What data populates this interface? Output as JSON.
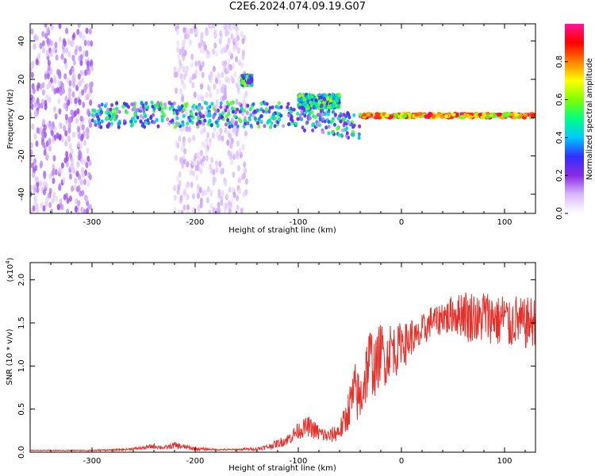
{
  "title": "C2E6.2024.074.09.19.G07",
  "chart_data": [
    {
      "type": "heatmap",
      "xlabel": "Height of straight line (km)",
      "ylabel": "Frequency (Hz)",
      "xlim": [
        -360,
        130
      ],
      "ylim": [
        -50,
        49
      ],
      "x_ticks": [
        -300,
        -200,
        -100,
        0,
        100
      ],
      "y_ticks": [
        -40,
        -20,
        0,
        20,
        40
      ],
      "colorbar": {
        "label": "Normalized spectral amplitude",
        "range": [
          0,
          1
        ],
        "ticks": [
          0.0,
          0.2,
          0.4,
          0.6,
          0.8
        ],
        "tick_labels": [
          "0.0",
          "0.2",
          "0.4",
          "0.6",
          "0.8"
        ],
        "colormap": [
          "#ffffff",
          "#d8b8ff",
          "#8a2be2",
          "#3030ff",
          "#00c8ff",
          "#00ff80",
          "#80ff00",
          "#ffff00",
          "#ff8000",
          "#ff0000",
          "#ff1493"
        ]
      },
      "regions": [
        {
          "x": [
            -360,
            -300
          ],
          "y": [
            -50,
            49
          ],
          "amplitude": 0.15,
          "kind": "scattered noise"
        },
        {
          "x": [
            -220,
            -150
          ],
          "y": [
            -50,
            49
          ],
          "amplitude": 0.1,
          "kind": "scattered noise"
        },
        {
          "x": [
            -300,
            -40
          ],
          "y": [
            -5,
            8
          ],
          "amplitude": 0.35,
          "kind": "broadband band"
        },
        {
          "x": [
            -155,
            -145
          ],
          "y": [
            17,
            22
          ],
          "amplitude": 0.5,
          "kind": "patch"
        },
        {
          "x": [
            -100,
            -60
          ],
          "y": [
            5,
            12
          ],
          "amplitude": 0.5,
          "kind": "patch"
        },
        {
          "x": [
            -40,
            130
          ],
          "y": [
            0,
            2
          ],
          "amplitude": 0.9,
          "kind": "coherent line"
        }
      ]
    },
    {
      "type": "line",
      "xlabel": "Height of straight line (km)",
      "ylabel": "SNR (10 * v/v)",
      "y_scale_label": "(x10",
      "y_scale_exponent": "4",
      "y_scale_suffix": ")",
      "xlim": [
        -360,
        130
      ],
      "ylim": [
        0,
        2.2
      ],
      "x_ticks": [
        -300,
        -200,
        -100,
        0,
        100
      ],
      "y_ticks": [
        0.0,
        0.5,
        1.0,
        1.5,
        2.0
      ],
      "y_tick_labels": [
        "0.0",
        "0.5",
        "1.0",
        "1.5",
        "2.0"
      ],
      "series": [
        {
          "color": "#e8302a",
          "x": [
            -360,
            -330,
            -300,
            -270,
            -250,
            -240,
            -230,
            -220,
            -210,
            -200,
            -180,
            -160,
            -140,
            -130,
            -120,
            -110,
            -100,
            -90,
            -80,
            -70,
            -60,
            -55,
            -50,
            -45,
            -40,
            -35,
            -30,
            -25,
            -20,
            -15,
            -10,
            -5,
            0,
            5,
            10,
            15,
            20,
            25,
            30,
            35,
            40,
            45,
            50,
            55,
            60,
            65,
            70,
            75,
            80,
            85,
            90,
            95,
            100,
            105,
            110,
            115,
            120,
            125,
            130
          ],
          "y": [
            0.02,
            0.02,
            0.02,
            0.03,
            0.05,
            0.07,
            0.05,
            0.08,
            0.06,
            0.04,
            0.03,
            0.03,
            0.04,
            0.06,
            0.1,
            0.15,
            0.25,
            0.3,
            0.22,
            0.18,
            0.25,
            0.35,
            0.55,
            0.7,
            0.6,
            0.9,
            1.1,
            0.95,
            1.2,
            1.05,
            1.25,
            1.15,
            1.3,
            1.25,
            1.35,
            1.3,
            1.4,
            1.45,
            1.55,
            1.5,
            1.6,
            1.55,
            1.62,
            1.58,
            1.65,
            1.55,
            1.6,
            1.5,
            1.62,
            1.55,
            1.58,
            1.5,
            1.6,
            1.45,
            1.55,
            1.5,
            1.48,
            1.52,
            1.5
          ],
          "spread": [
            0.005,
            0.005,
            0.008,
            0.01,
            0.02,
            0.03,
            0.02,
            0.04,
            0.03,
            0.02,
            0.01,
            0.01,
            0.02,
            0.03,
            0.05,
            0.07,
            0.1,
            0.12,
            0.1,
            0.08,
            0.12,
            0.18,
            0.25,
            0.35,
            0.3,
            0.4,
            0.4,
            0.35,
            0.35,
            0.3,
            0.3,
            0.28,
            0.25,
            0.25,
            0.22,
            0.2,
            0.2,
            0.18,
            0.18,
            0.18,
            0.2,
            0.22,
            0.22,
            0.25,
            0.3,
            0.3,
            0.3,
            0.3,
            0.32,
            0.3,
            0.3,
            0.3,
            0.3,
            0.28,
            0.3,
            0.3,
            0.3,
            0.3,
            0.3
          ]
        }
      ]
    }
  ]
}
